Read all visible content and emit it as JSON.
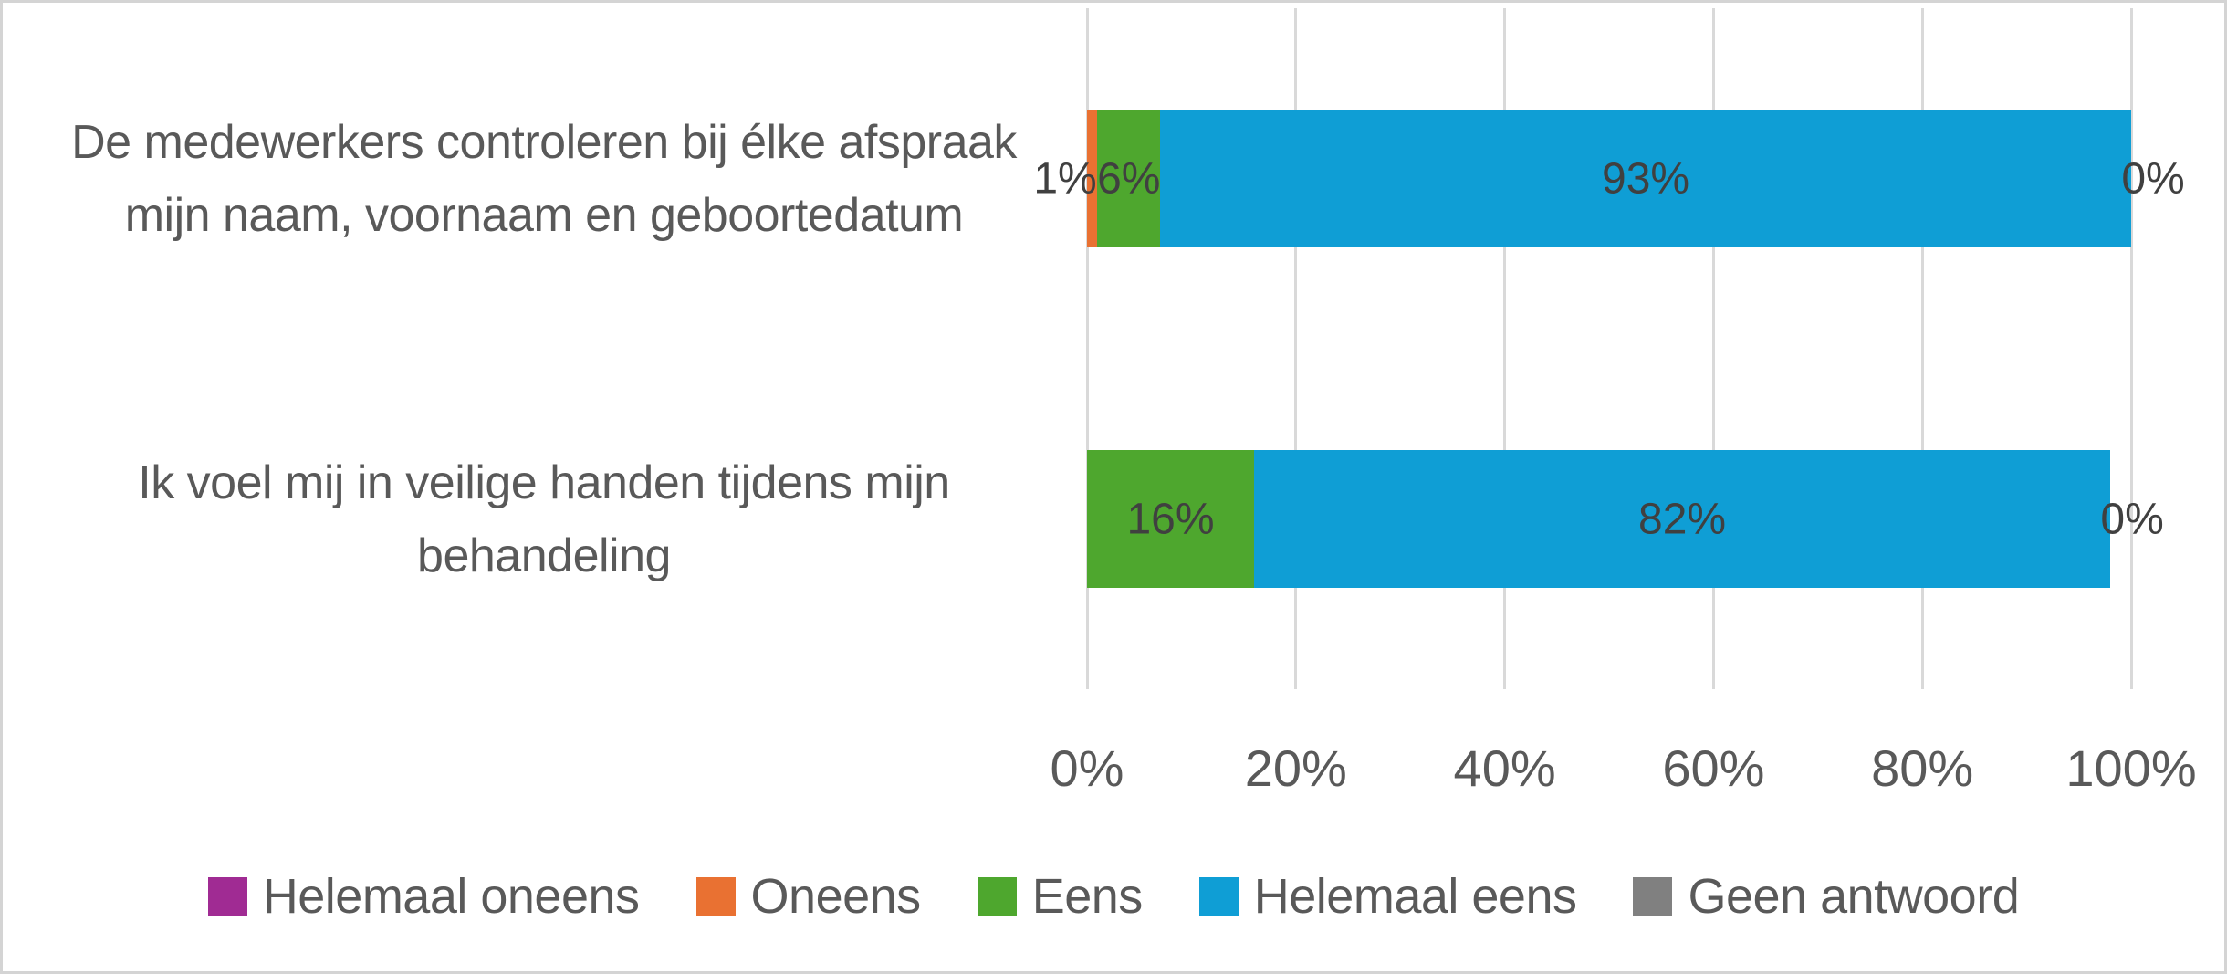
{
  "chart_data": {
    "type": "bar",
    "orientation": "horizontal",
    "stacked": true,
    "title": "",
    "xlabel": "",
    "ylabel": "",
    "categories": [
      "De medewerkers controleren bij élke afspraak mijn naam, voornaam en geboortedatum",
      "Ik voel mij in veilige handen tijdens mijn behandeling"
    ],
    "series": [
      {
        "name": "Helemaal oneens",
        "color": "#A02B93",
        "values": [
          0,
          0
        ],
        "labels": [
          null,
          null
        ]
      },
      {
        "name": "Oneens",
        "color": "#E97132",
        "values": [
          1,
          0
        ],
        "labels": [
          "1%",
          null
        ]
      },
      {
        "name": "Eens",
        "color": "#4EA72E",
        "values": [
          6,
          16
        ],
        "labels": [
          "6%",
          "16%"
        ]
      },
      {
        "name": "Helemaal eens",
        "color": "#0F9ED5",
        "values": [
          93,
          82
        ],
        "labels": [
          "93%",
          "82%"
        ]
      },
      {
        "name": "Geen antwoord",
        "color": "#808080",
        "values": [
          0,
          0
        ],
        "labels": [
          "0%",
          "0%"
        ]
      }
    ],
    "x_axis": {
      "min": 0,
      "max": 100,
      "ticks": [
        "0%",
        "20%",
        "40%",
        "60%",
        "80%",
        "100%"
      ]
    },
    "legend": {
      "position": "bottom"
    },
    "gridlines": {
      "vertical": true,
      "horizontal": false
    }
  },
  "palette": {
    "gridline": "#D9D9D9",
    "axis_text": "#595959",
    "category_text": "#595959",
    "data_label_text": "#404040",
    "frame_border": "#D4D4D4",
    "background": "#FFFFFF"
  }
}
